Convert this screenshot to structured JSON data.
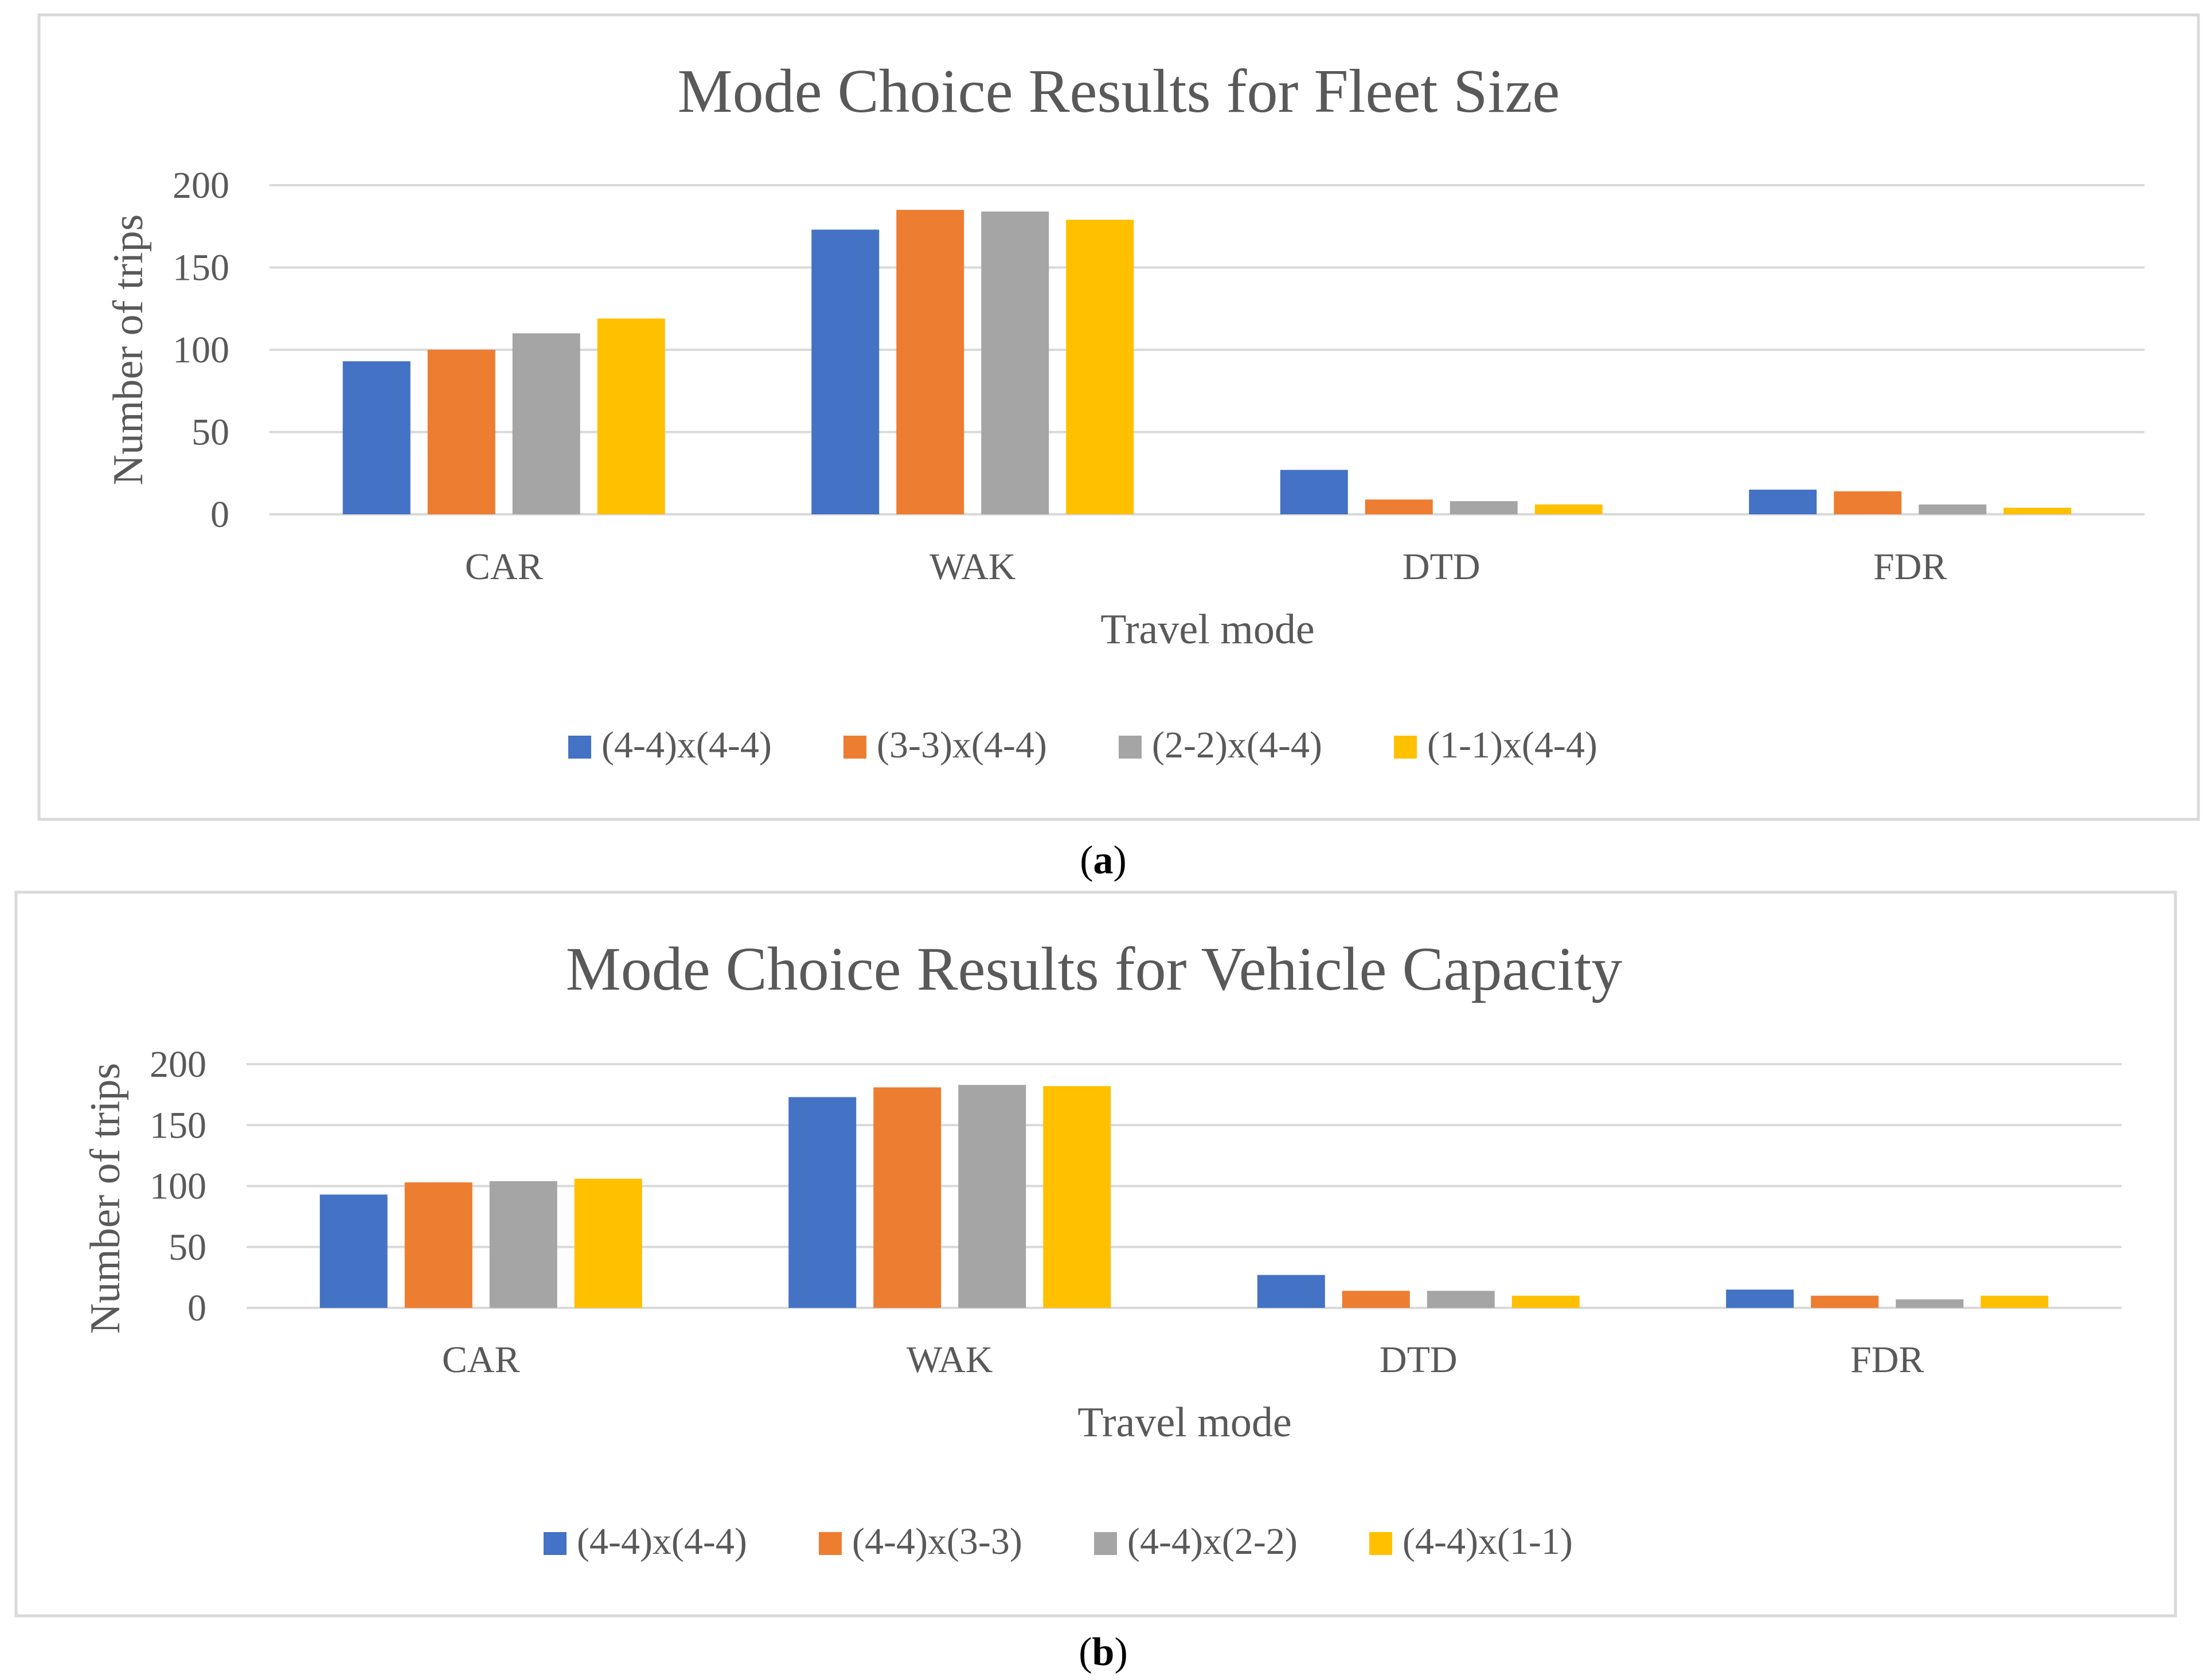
{
  "chart_data": [
    {
      "id": "a",
      "type": "bar",
      "title": "Mode Choice Results for Fleet Size",
      "xlabel": "Travel mode",
      "ylabel": "Number of trips",
      "ylim": [
        0,
        200
      ],
      "yticks": [
        "0",
        "50",
        "100",
        "150",
        "200"
      ],
      "grid": true,
      "legend_position": "bottom",
      "categories": [
        "CAR",
        "WAK",
        "DTD",
        "FDR"
      ],
      "series": [
        {
          "name": "(4-4)x(4-4)",
          "color": "#4472c4",
          "values": [
            93,
            173,
            27,
            15
          ]
        },
        {
          "name": "(3-3)x(4-4)",
          "color": "#ed7d31",
          "values": [
            100,
            185,
            9,
            14
          ]
        },
        {
          "name": "(2-2)x(4-4)",
          "color": "#a5a5a5",
          "values": [
            110,
            184,
            8,
            6
          ]
        },
        {
          "name": "(1-1)x(4-4)",
          "color": "#ffc000",
          "values": [
            119,
            179,
            6,
            4
          ]
        }
      ],
      "caption_open": "(",
      "caption_letter": "a",
      "caption_close": ")"
    },
    {
      "id": "b",
      "type": "bar",
      "title": "Mode Choice Results for Vehicle Capacity",
      "xlabel": "Travel mode",
      "ylabel": "Number of trips",
      "ylim": [
        0,
        200
      ],
      "yticks": [
        "0",
        "50",
        "100",
        "150",
        "200"
      ],
      "grid": true,
      "legend_position": "bottom",
      "categories": [
        "CAR",
        "WAK",
        "DTD",
        "FDR"
      ],
      "series": [
        {
          "name": "(4-4)x(4-4)",
          "color": "#4472c4",
          "values": [
            93,
            173,
            27,
            15
          ]
        },
        {
          "name": "(4-4)x(3-3)",
          "color": "#ed7d31",
          "values": [
            103,
            181,
            14,
            10
          ]
        },
        {
          "name": "(4-4)x(2-2)",
          "color": "#a5a5a5",
          "values": [
            104,
            183,
            14,
            7
          ]
        },
        {
          "name": "(4-4)x(1-1)",
          "color": "#ffc000",
          "values": [
            106,
            182,
            10,
            10
          ]
        }
      ],
      "caption_open": "(",
      "caption_letter": "b",
      "caption_close": ")"
    }
  ]
}
